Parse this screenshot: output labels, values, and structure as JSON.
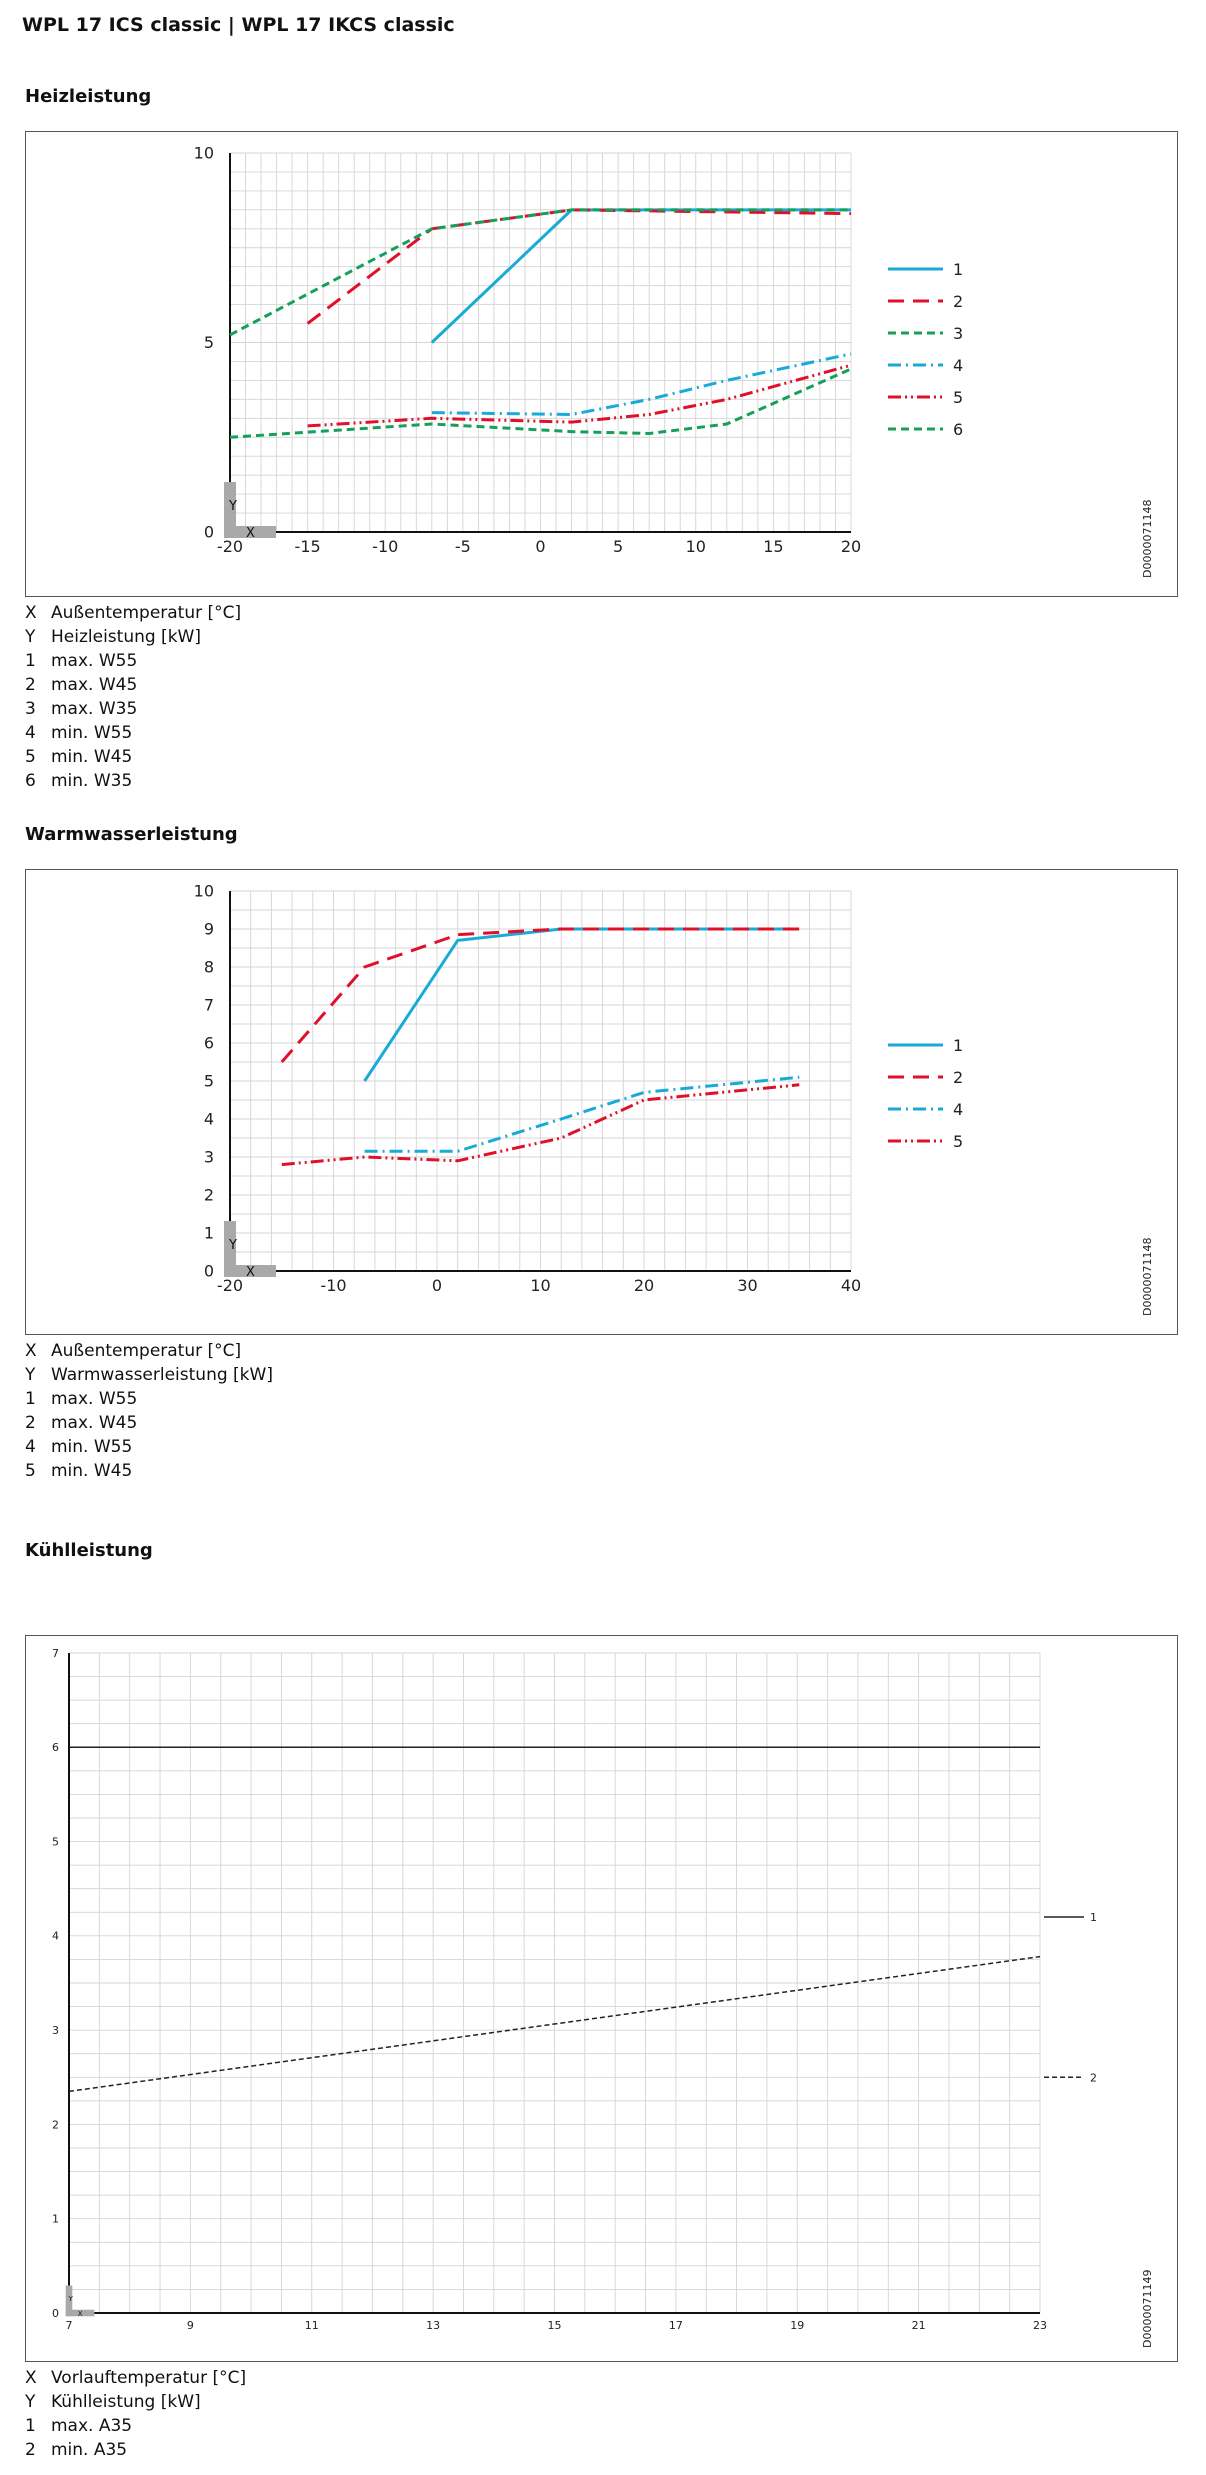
{
  "header": {
    "title": "WPL 17 ICS classic | WPL 17 IKCS classic"
  },
  "sections": {
    "heiz": {
      "title": "Heizleistung",
      "doc_id": "D0000071148",
      "legend": [
        {
          "key": "X",
          "text": "Außentemperatur [°C]"
        },
        {
          "key": "Y",
          "text": "Heizleistung [kW]"
        },
        {
          "key": "1",
          "text": "max. W55"
        },
        {
          "key": "2",
          "text": "max. W45"
        },
        {
          "key": "3",
          "text": "max. W35"
        },
        {
          "key": "4",
          "text": "min. W55"
        },
        {
          "key": "5",
          "text": "min. W45"
        },
        {
          "key": "6",
          "text": "min. W35"
        }
      ]
    },
    "warm": {
      "title": "Warmwasserleistung",
      "doc_id": "D0000071148",
      "legend": [
        {
          "key": "X",
          "text": "Außentemperatur [°C]"
        },
        {
          "key": "Y",
          "text": "Warmwasserleistung [kW]"
        },
        {
          "key": "1",
          "text": "max. W55"
        },
        {
          "key": "2",
          "text": "max. W45"
        },
        {
          "key": "4",
          "text": "min. W55"
        },
        {
          "key": "5",
          "text": "min. W45"
        }
      ]
    },
    "kuehl": {
      "title": "Kühlleistung",
      "doc_id": "D0000071149",
      "legend": [
        {
          "key": "X",
          "text": "Vorlauftemperatur [°C]"
        },
        {
          "key": "Y",
          "text": "Kühlleistung [kW]"
        },
        {
          "key": "1",
          "text": "max. A35"
        },
        {
          "key": "2",
          "text": "min. A35"
        }
      ]
    }
  },
  "colors": {
    "blue": "#1aaad8",
    "red": "#e0102a",
    "green": "#14a05a",
    "black": "#222222",
    "grid": "#d4d4d4"
  },
  "chart_data": [
    {
      "type": "line",
      "title": "Heizleistung",
      "xlabel": "X",
      "ylabel": "Y",
      "xlim": [
        -20,
        20
      ],
      "ylim": [
        0,
        10
      ],
      "xticks": [
        -20,
        -15,
        -10,
        -5,
        0,
        5,
        10,
        15,
        20
      ],
      "yticks": [
        0,
        5,
        10
      ],
      "grid": true,
      "legend_position": "right",
      "series": [
        {
          "name": "1",
          "color": "#1aaad8",
          "dash": "solid",
          "x": [
            -7,
            2,
            20
          ],
          "y": [
            5.0,
            8.5,
            8.5
          ]
        },
        {
          "name": "2",
          "color": "#e0102a",
          "dash": "longdash",
          "x": [
            -15,
            -7,
            2,
            20
          ],
          "y": [
            5.5,
            8.0,
            8.5,
            8.4
          ]
        },
        {
          "name": "3",
          "color": "#14a05a",
          "dash": "shortdash",
          "x": [
            -20,
            -7,
            2,
            20
          ],
          "y": [
            5.2,
            8.0,
            8.5,
            8.5
          ]
        },
        {
          "name": "4",
          "color": "#1aaad8",
          "dash": "dashdot",
          "x": [
            -7,
            2,
            7,
            12,
            20
          ],
          "y": [
            3.15,
            3.1,
            3.5,
            4.0,
            4.7
          ]
        },
        {
          "name": "5",
          "color": "#e0102a",
          "dash": "dashdotdot",
          "x": [
            -15,
            -7,
            2,
            7,
            12,
            20
          ],
          "y": [
            2.8,
            3.0,
            2.9,
            3.1,
            3.5,
            4.4
          ]
        },
        {
          "name": "6",
          "color": "#14a05a",
          "dash": "shortdash",
          "x": [
            -20,
            -7,
            2,
            7,
            12,
            20
          ],
          "y": [
            2.5,
            2.85,
            2.65,
            2.6,
            2.85,
            4.3
          ]
        }
      ]
    },
    {
      "type": "line",
      "title": "Warmwasserleistung",
      "xlabel": "X",
      "ylabel": "Y",
      "xlim": [
        -20,
        40
      ],
      "ylim": [
        0,
        10
      ],
      "xticks": [
        -20,
        -10,
        0,
        10,
        20,
        30,
        40
      ],
      "yticks": [
        0,
        1,
        2,
        3,
        4,
        5,
        6,
        7,
        8,
        9,
        10
      ],
      "grid": true,
      "legend_position": "right",
      "series": [
        {
          "name": "1",
          "color": "#1aaad8",
          "dash": "solid",
          "x": [
            -7,
            2,
            12,
            35
          ],
          "y": [
            5.0,
            8.7,
            9.0,
            9.0
          ]
        },
        {
          "name": "2",
          "color": "#e0102a",
          "dash": "longdash",
          "x": [
            -15,
            -7,
            2,
            12,
            35
          ],
          "y": [
            5.5,
            8.0,
            8.85,
            9.0,
            9.0
          ]
        },
        {
          "name": "4",
          "color": "#1aaad8",
          "dash": "dashdot",
          "x": [
            -7,
            2,
            12,
            20,
            35
          ],
          "y": [
            3.15,
            3.15,
            4.0,
            4.7,
            5.1
          ]
        },
        {
          "name": "5",
          "color": "#e0102a",
          "dash": "dashdotdot",
          "x": [
            -15,
            -7,
            2,
            12,
            20,
            35
          ],
          "y": [
            2.8,
            3.0,
            2.9,
            3.5,
            4.5,
            4.9
          ]
        }
      ]
    },
    {
      "type": "line",
      "title": "Kühlleistung",
      "xlabel": "X",
      "ylabel": "Y",
      "xlim": [
        7,
        23
      ],
      "ylim": [
        0,
        7
      ],
      "xticks": [
        7,
        9,
        11,
        13,
        15,
        17,
        19,
        21,
        23
      ],
      "yticks": [
        0,
        1,
        2,
        3,
        4,
        5,
        6,
        7
      ],
      "grid": true,
      "legend_position": "right",
      "series": [
        {
          "name": "1",
          "color": "#222222",
          "dash": "solid",
          "x": [
            7,
            23
          ],
          "y": [
            6.0,
            6.0
          ]
        },
        {
          "name": "2",
          "color": "#222222",
          "dash": "dashed",
          "x": [
            7,
            23
          ],
          "y": [
            2.35,
            3.78
          ]
        }
      ]
    }
  ]
}
